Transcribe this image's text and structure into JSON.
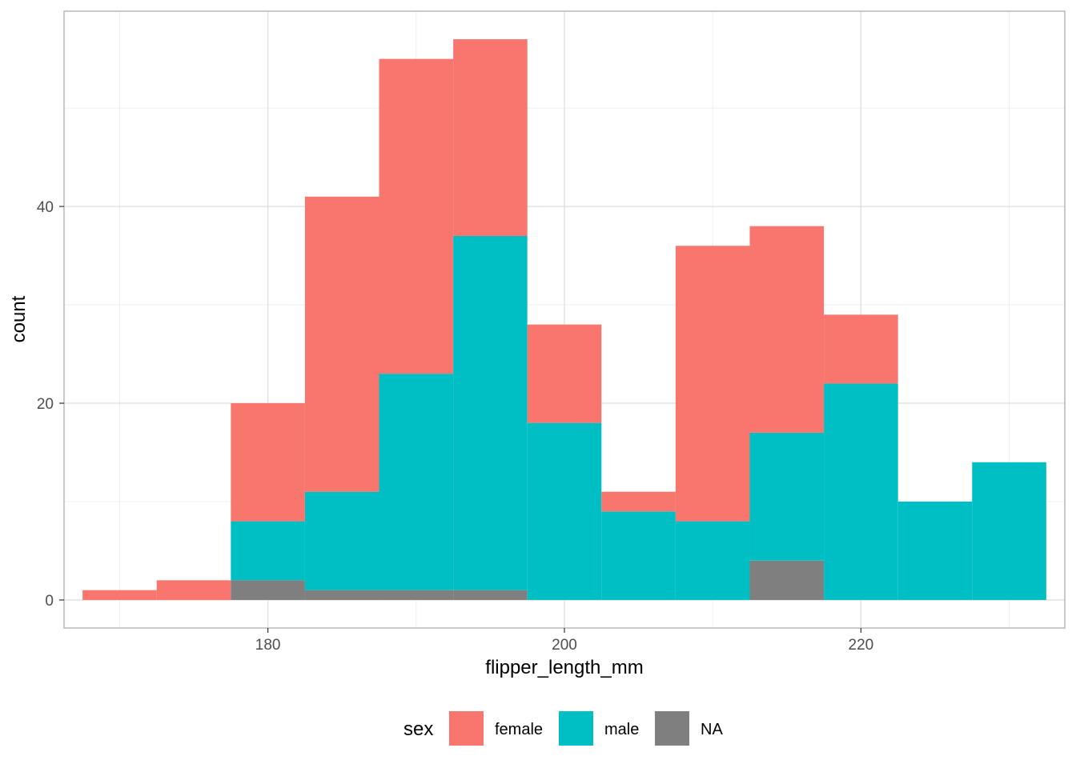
{
  "chart_data": {
    "type": "bar",
    "subtype": "stacked-histogram",
    "title": "",
    "xlabel": "flipper_length_mm",
    "ylabel": "count",
    "xlim": [
      166.25,
      233.75
    ],
    "ylim": [
      -2.85,
      59.85
    ],
    "x_ticks": [
      180,
      200,
      220
    ],
    "y_ticks": [
      0,
      20,
      40
    ],
    "x_tick_labels": [
      "180",
      "200",
      "220"
    ],
    "y_tick_labels": [
      "0",
      "20",
      "40"
    ],
    "grid": true,
    "bin_width": 5,
    "bin_centers": [
      170,
      175,
      180,
      185,
      190,
      195,
      200,
      205,
      210,
      215,
      220,
      225,
      230
    ],
    "stack_order": [
      "NA",
      "male",
      "female"
    ],
    "series": [
      {
        "name": "female",
        "color": "#F8766D",
        "values": [
          1,
          2,
          12,
          30,
          32,
          20,
          10,
          2,
          28,
          21,
          7,
          0,
          0
        ]
      },
      {
        "name": "male",
        "color": "#00BFC4",
        "values": [
          0,
          0,
          6,
          10,
          22,
          36,
          18,
          9,
          8,
          13,
          22,
          10,
          14
        ]
      },
      {
        "name": "NA",
        "color": "#7F7F7F",
        "values": [
          0,
          0,
          2,
          1,
          1,
          1,
          0,
          0,
          0,
          4,
          0,
          0,
          0
        ]
      }
    ],
    "legend": {
      "title": "sex",
      "position": "bottom",
      "entries": [
        "female",
        "male",
        "NA"
      ]
    }
  }
}
